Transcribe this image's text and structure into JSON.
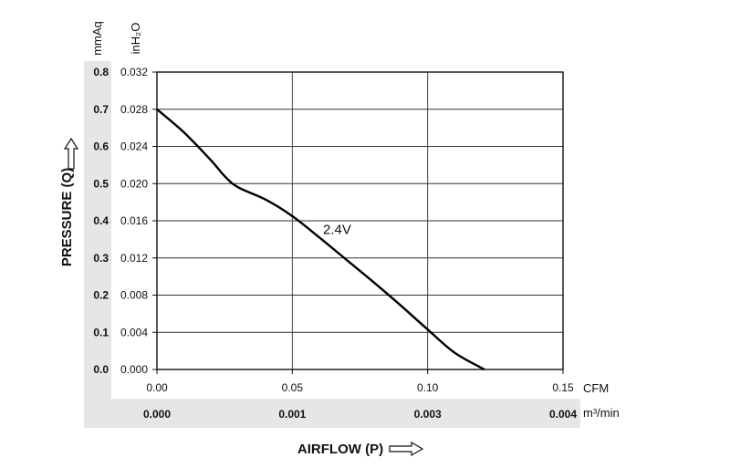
{
  "chart_data": {
    "type": "line",
    "x_axis": {
      "unit": "CFM",
      "range": [
        0.0,
        0.15
      ],
      "ticks": [
        "0.00",
        "0.05",
        "0.10",
        "0.15"
      ],
      "secondary_unit": "m³/min",
      "secondary_ticks": [
        "0.000",
        "0.001",
        "0.003",
        "0.004"
      ],
      "label": "AIRFLOW (P)"
    },
    "y_axis": {
      "unit": "inH₂O",
      "range": [
        0.0,
        0.032
      ],
      "ticks": [
        "0.000",
        "0.004",
        "0.008",
        "0.012",
        "0.016",
        "0.020",
        "0.024",
        "0.028",
        "0.032"
      ],
      "secondary_unit": "mmAq",
      "secondary_ticks": [
        "0.0",
        "0.1",
        "0.2",
        "0.3",
        "0.4",
        "0.5",
        "0.6",
        "0.7",
        "0.8"
      ],
      "label": "PRESSURE (Q)"
    },
    "grid": true,
    "series": [
      {
        "name": "2.4V",
        "x": [
          0.0,
          0.01,
          0.02,
          0.025,
          0.03,
          0.04,
          0.05,
          0.06,
          0.07,
          0.08,
          0.09,
          0.1,
          0.11,
          0.121
        ],
        "y": [
          0.028,
          0.0255,
          0.0225,
          0.0208,
          0.0196,
          0.0183,
          0.0165,
          0.0142,
          0.0118,
          0.0094,
          0.0069,
          0.0043,
          0.0018,
          0.0
        ]
      }
    ],
    "colors": {
      "line": "#000000",
      "band": "#e6e6e6",
      "grid": "#333333"
    }
  }
}
